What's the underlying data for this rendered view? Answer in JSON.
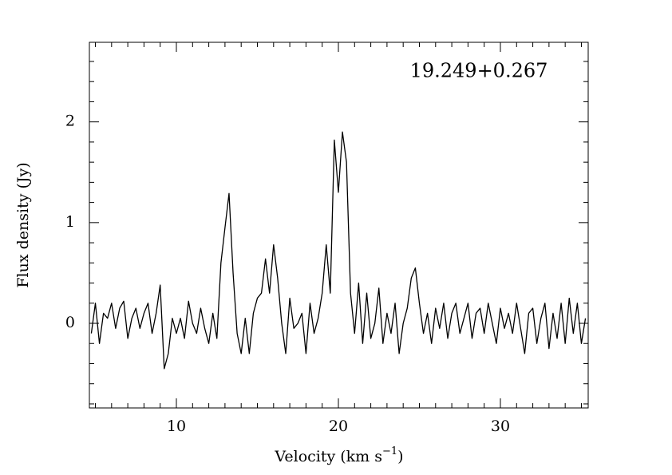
{
  "chart_data": {
    "type": "line",
    "annotation": "19.249+0.267",
    "ylabel": "Flux density (Jy)",
    "xlabel_parts": [
      "Velocity (km s",
      "−1",
      ")"
    ],
    "xlim": [
      4.63,
      35.42
    ],
    "ylim": [
      -0.84,
      2.79
    ],
    "xticks": [
      10,
      20,
      30
    ],
    "yticks": [
      0,
      1,
      2
    ],
    "x_minor_ticks": [
      5,
      6,
      7,
      8,
      9,
      11,
      12,
      13,
      14,
      15,
      16,
      17,
      18,
      19,
      21,
      22,
      23,
      24,
      25,
      26,
      27,
      28,
      29,
      31,
      32,
      33,
      34,
      35
    ],
    "y_minor_ticks": [
      -0.8,
      -0.6,
      -0.4,
      -0.2,
      0.2,
      0.4,
      0.6,
      0.8,
      1.2,
      1.4,
      1.6,
      1.8,
      2.2,
      2.4,
      2.6
    ],
    "x": [
      4.75,
      5,
      5.25,
      5.5,
      5.75,
      6,
      6.25,
      6.5,
      6.75,
      7,
      7.25,
      7.5,
      7.75,
      8,
      8.25,
      8.5,
      8.75,
      9,
      9.25,
      9.5,
      9.75,
      10,
      10.25,
      10.5,
      10.75,
      11,
      11.25,
      11.5,
      11.75,
      12,
      12.25,
      12.5,
      12.75,
      13,
      13.25,
      13.5,
      13.75,
      14,
      14.25,
      14.5,
      14.75,
      15,
      15.25,
      15.5,
      15.75,
      16,
      16.25,
      16.5,
      16.75,
      17,
      17.25,
      17.5,
      17.75,
      18,
      18.25,
      18.5,
      18.75,
      19,
      19.25,
      19.5,
      19.75,
      20,
      20.25,
      20.5,
      20.75,
      21,
      21.25,
      21.5,
      21.75,
      22,
      22.25,
      22.5,
      22.75,
      23,
      23.25,
      23.5,
      23.75,
      24,
      24.25,
      24.5,
      24.75,
      25,
      25.25,
      25.5,
      25.75,
      26,
      26.25,
      26.5,
      26.75,
      27,
      27.25,
      27.5,
      27.75,
      28,
      28.25,
      28.5,
      28.75,
      29,
      29.25,
      29.5,
      29.75,
      30,
      30.25,
      30.5,
      30.75,
      31,
      31.25,
      31.5,
      31.75,
      32,
      32.25,
      32.5,
      32.75,
      33,
      33.25,
      33.5,
      33.75,
      34,
      34.25,
      34.5,
      34.75,
      35,
      35.25
    ],
    "series": [
      {
        "color": "#000000",
        "values": [
          -0.1,
          0.2,
          -0.2,
          0.1,
          0.05,
          0.2,
          -0.05,
          0.15,
          0.22,
          -0.15,
          0.05,
          0.15,
          -0.05,
          0.1,
          0.2,
          -0.1,
          0.1,
          0.38,
          -0.45,
          -0.3,
          0.05,
          -0.1,
          0.05,
          -0.15,
          0.22,
          0.0,
          -0.1,
          0.15,
          -0.05,
          -0.2,
          0.1,
          -0.15,
          0.6,
          0.95,
          1.29,
          0.5,
          -0.1,
          -0.3,
          0.05,
          -0.3,
          0.1,
          0.25,
          0.3,
          0.64,
          0.3,
          0.78,
          0.45,
          0.0,
          -0.3,
          0.25,
          -0.05,
          0.0,
          0.1,
          -0.3,
          0.2,
          -0.1,
          0.05,
          0.3,
          0.78,
          0.3,
          1.82,
          1.3,
          1.9,
          1.6,
          0.3,
          -0.1,
          0.4,
          -0.2,
          0.3,
          -0.15,
          0.0,
          0.35,
          -0.2,
          0.1,
          -0.1,
          0.2,
          -0.3,
          0.0,
          0.15,
          0.45,
          0.55,
          0.2,
          -0.1,
          0.1,
          -0.2,
          0.15,
          -0.05,
          0.2,
          -0.15,
          0.1,
          0.2,
          -0.1,
          0.05,
          0.2,
          -0.15,
          0.1,
          0.15,
          -0.1,
          0.2,
          0.0,
          -0.2,
          0.15,
          -0.05,
          0.1,
          -0.1,
          0.2,
          -0.05,
          -0.3,
          0.1,
          0.15,
          -0.2,
          0.05,
          0.2,
          -0.25,
          0.1,
          -0.15,
          0.2,
          -0.2,
          0.25,
          -0.1,
          0.2,
          -0.2,
          0.05
        ]
      }
    ]
  }
}
